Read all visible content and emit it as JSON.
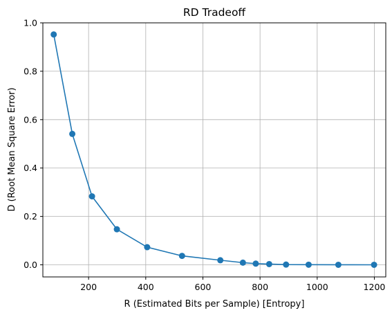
{
  "chart_data": {
    "type": "line",
    "title": "RD Tradeoff",
    "xlabel": "R (Estimated Bits per Sample) [Entropy]",
    "ylabel": "D (Root Mean Square Error)",
    "xlim": [
      40,
      1240
    ],
    "ylim": [
      -0.05,
      1.0
    ],
    "x_ticks": [
      200,
      400,
      600,
      800,
      1000,
      1200
    ],
    "y_ticks": [
      0.0,
      0.2,
      0.4,
      0.6,
      0.8,
      1.0
    ],
    "x_tick_labels": [
      "200",
      "400",
      "600",
      "800",
      "1000",
      "1200"
    ],
    "y_tick_labels": [
      "0.0",
      "0.2",
      "0.4",
      "0.6",
      "0.8",
      "1.0"
    ],
    "grid": true,
    "series": [
      {
        "color": "#1f77b4",
        "marker": "circle",
        "x": [
          78,
          143,
          212,
          299,
          405,
          527,
          661,
          740,
          785,
          832,
          891,
          970,
          1074,
          1199
        ],
        "y": [
          0.952,
          0.541,
          0.283,
          0.147,
          0.073,
          0.037,
          0.019,
          0.009,
          0.005,
          0.003,
          0.001,
          0.0005,
          0.0002,
          0.0001
        ]
      }
    ]
  }
}
